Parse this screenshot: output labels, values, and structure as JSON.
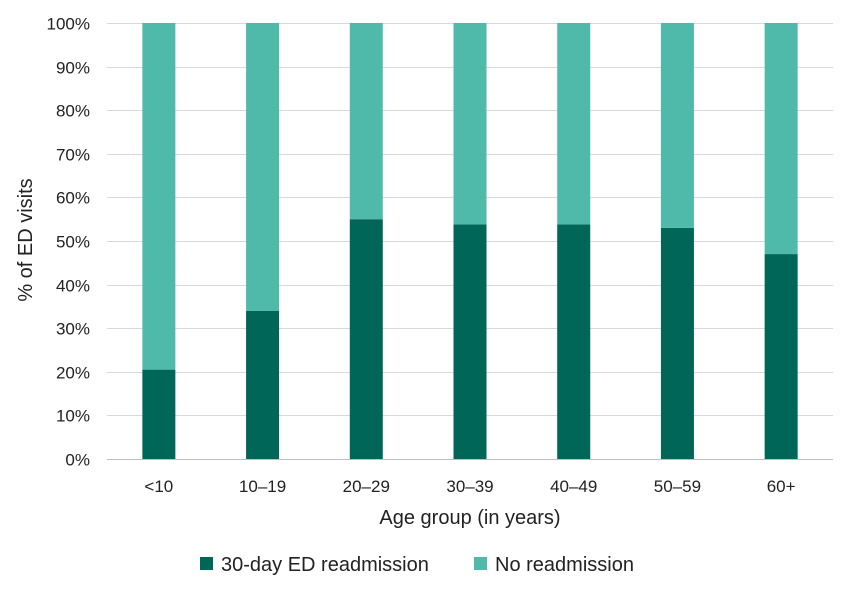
{
  "chart_data": {
    "type": "bar",
    "stacked": true,
    "percent_stacked": true,
    "title": "",
    "xlabel": "Age group (in years)",
    "ylabel": "% of ED visits",
    "ylim": [
      0,
      100
    ],
    "ytick_values": [
      0,
      10,
      20,
      30,
      40,
      50,
      60,
      70,
      80,
      90,
      100
    ],
    "ytick_labels": [
      "0%",
      "10%",
      "20%",
      "30%",
      "40%",
      "50%",
      "60%",
      "70%",
      "80%",
      "90%",
      "100%"
    ],
    "categories": [
      "<10",
      "10–19",
      "20–29",
      "30–39",
      "40–49",
      "50–59",
      "60+"
    ],
    "series": [
      {
        "name": "30-day ED readmission",
        "color": "#006657",
        "values": [
          20.5,
          34,
          55,
          53.8,
          53.8,
          53,
          47
        ]
      },
      {
        "name": "No readmission",
        "color": "#4fbaa9",
        "values": [
          79.5,
          66,
          45,
          46.2,
          46.2,
          47,
          53
        ]
      }
    ],
    "grid": true,
    "legend_position": "bottom"
  }
}
